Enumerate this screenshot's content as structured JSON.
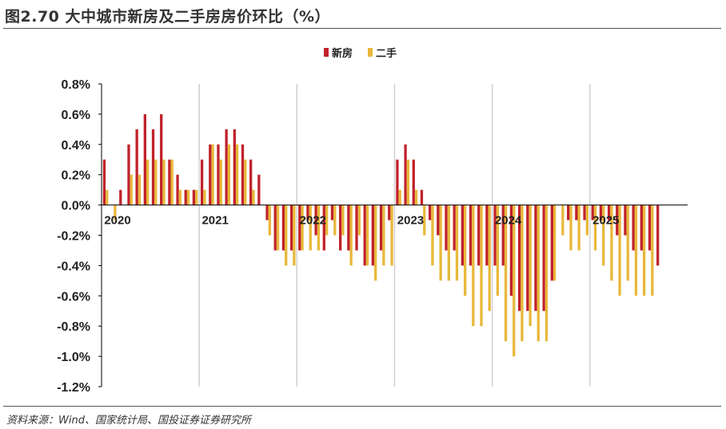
{
  "figure": {
    "title": "图2.70 大中城市新房及二手房房价环比（%）",
    "source": "资料来源：Wind、国家统计局、国投证券证券研究所"
  },
  "chart_data": {
    "type": "bar",
    "title": "大中城市新房及二手房房价环比（%）",
    "xlabel": "",
    "ylabel": "",
    "ylim": [
      -1.2,
      0.8
    ],
    "y_ticks": [
      "0.8%",
      "0.6%",
      "0.4%",
      "0.2%",
      "0.0%",
      "-0.2%",
      "-0.4%",
      "-0.6%",
      "-0.8%",
      "-1.0%",
      "-1.2%"
    ],
    "y_tick_values": [
      0.8,
      0.6,
      0.4,
      0.2,
      0.0,
      -0.2,
      -0.4,
      -0.6,
      -0.8,
      -1.0,
      -1.2
    ],
    "years": [
      "2020",
      "2021",
      "2022",
      "2023",
      "2024",
      "2025"
    ],
    "months_per_year": 12,
    "legend_position": "top-center",
    "grid": "vertical lines at year boundaries",
    "colors": {
      "new_home": "#c0222b",
      "second_hand": "#e8b83a",
      "axis": "#000000",
      "grid": "#d0d0d0"
    },
    "series": [
      {
        "name": "新房",
        "values": [
          0.3,
          0.0,
          0.1,
          0.4,
          0.5,
          0.6,
          0.5,
          0.6,
          0.3,
          0.2,
          0.1,
          0.1,
          0.3,
          0.4,
          0.4,
          0.5,
          0.5,
          0.4,
          0.3,
          0.2,
          -0.1,
          -0.3,
          -0.3,
          -0.3,
          -0.3,
          -0.1,
          -0.2,
          -0.3,
          -0.1,
          -0.3,
          -0.3,
          -0.3,
          -0.4,
          -0.4,
          -0.3,
          -0.1,
          0.3,
          0.4,
          0.3,
          0.1,
          -0.1,
          -0.2,
          -0.3,
          -0.3,
          -0.4,
          -0.4,
          -0.4,
          -0.4,
          -0.4,
          -0.4,
          -0.6,
          -0.7,
          -0.7,
          -0.7,
          -0.7,
          -0.5,
          0.0,
          -0.1,
          -0.1,
          -0.1,
          -0.1,
          -0.1,
          -0.1,
          -0.2,
          -0.2,
          -0.3,
          -0.3,
          -0.3,
          -0.4
        ]
      },
      {
        "name": "二手",
        "values": [
          0.1,
          -0.1,
          0.0,
          0.2,
          0.2,
          0.3,
          0.3,
          0.3,
          0.3,
          0.1,
          0.1,
          0.1,
          0.1,
          0.4,
          0.3,
          0.4,
          0.4,
          0.3,
          0.1,
          0.0,
          -0.2,
          -0.3,
          -0.4,
          -0.4,
          -0.3,
          -0.3,
          -0.3,
          -0.2,
          -0.2,
          -0.2,
          -0.4,
          -0.2,
          -0.4,
          -0.5,
          -0.4,
          -0.4,
          0.1,
          0.3,
          0.1,
          -0.2,
          -0.4,
          -0.5,
          -0.5,
          -0.5,
          -0.6,
          -0.8,
          -0.8,
          -0.7,
          -0.6,
          -0.9,
          -1.0,
          -0.9,
          -0.8,
          -0.9,
          -0.9,
          -0.5,
          -0.2,
          -0.3,
          -0.3,
          -0.2,
          -0.3,
          -0.4,
          -0.5,
          -0.6,
          -0.5,
          -0.6,
          -0.6,
          -0.6
        ]
      }
    ]
  }
}
